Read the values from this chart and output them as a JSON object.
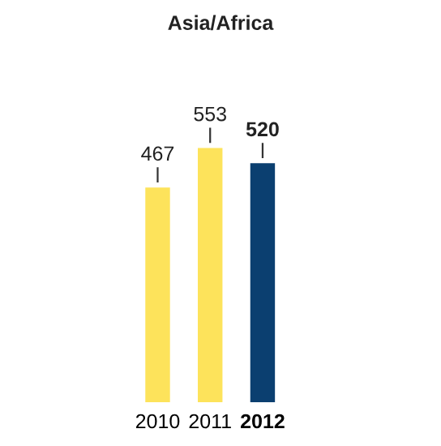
{
  "chart_data": {
    "type": "bar",
    "title": "Asia/Africa",
    "categories": [
      "2010",
      "2011",
      "2012"
    ],
    "values": [
      467,
      553,
      520
    ],
    "colors": [
      "#fde35b",
      "#fde35b",
      "#0b3f70"
    ],
    "data_labels": true
  }
}
